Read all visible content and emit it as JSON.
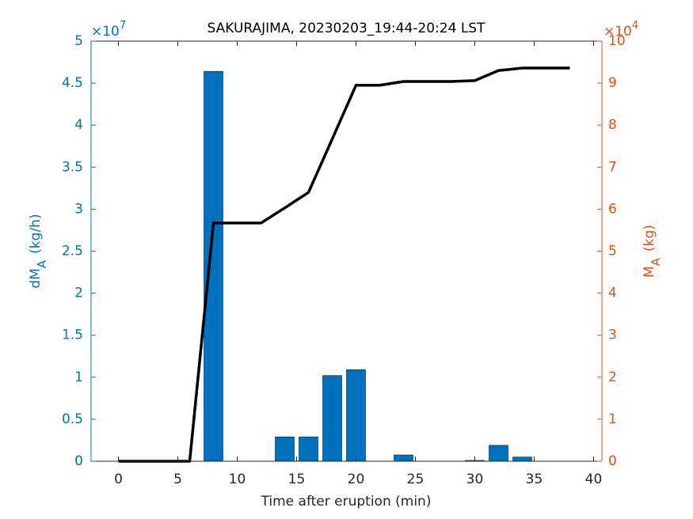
{
  "chart_data": {
    "type": "bar",
    "title": "SAKURAJIMA, 20230203_19:44-20:24 LST",
    "xlabel": "Time after eruption (min)",
    "ylabel": {
      "main": "dM",
      "sub": "A",
      "unit": "(kg/h)"
    },
    "y2label": {
      "main": "M",
      "sub": "A",
      "unit": "(kg)"
    },
    "y_exponent": {
      "base": "×10",
      "power": "7"
    },
    "y2_exponent": {
      "base": "×10",
      "power": "4"
    },
    "x": [
      0,
      2,
      4,
      6,
      8,
      10,
      12,
      14,
      16,
      18,
      20,
      22,
      24,
      26,
      28,
      30,
      32,
      34,
      36,
      38
    ],
    "series": [
      {
        "type": "bar",
        "color": "#0072bd",
        "values": [
          0,
          0,
          0,
          0,
          4.64,
          0,
          0,
          0.29,
          0.29,
          1.02,
          1.09,
          0,
          0.075,
          0,
          0,
          0.01,
          0.19,
          0.05,
          0,
          0
        ]
      },
      {
        "type": "line",
        "axis": "y2",
        "color": "#000000",
        "values": [
          0,
          0,
          0,
          0,
          5.67,
          5.67,
          5.67,
          6.03,
          6.4,
          7.67,
          8.95,
          8.95,
          9.04,
          9.04,
          9.04,
          9.06,
          9.3,
          9.36,
          9.36,
          9.36
        ]
      }
    ],
    "xlim": [
      -2.3,
      40.7
    ],
    "xticks": [
      0,
      5,
      10,
      15,
      20,
      25,
      30,
      35,
      40
    ],
    "ylim": [
      0,
      5
    ],
    "yticks": [
      0,
      0.5,
      1,
      1.5,
      2,
      2.5,
      3,
      3.5,
      4,
      4.5,
      5
    ],
    "y2lim": [
      0,
      10
    ],
    "y2ticks": [
      0,
      1,
      2,
      3,
      4,
      5,
      6,
      7,
      8,
      9,
      10
    ],
    "y_color": "#0072bd",
    "y2_color": "#d95319"
  }
}
